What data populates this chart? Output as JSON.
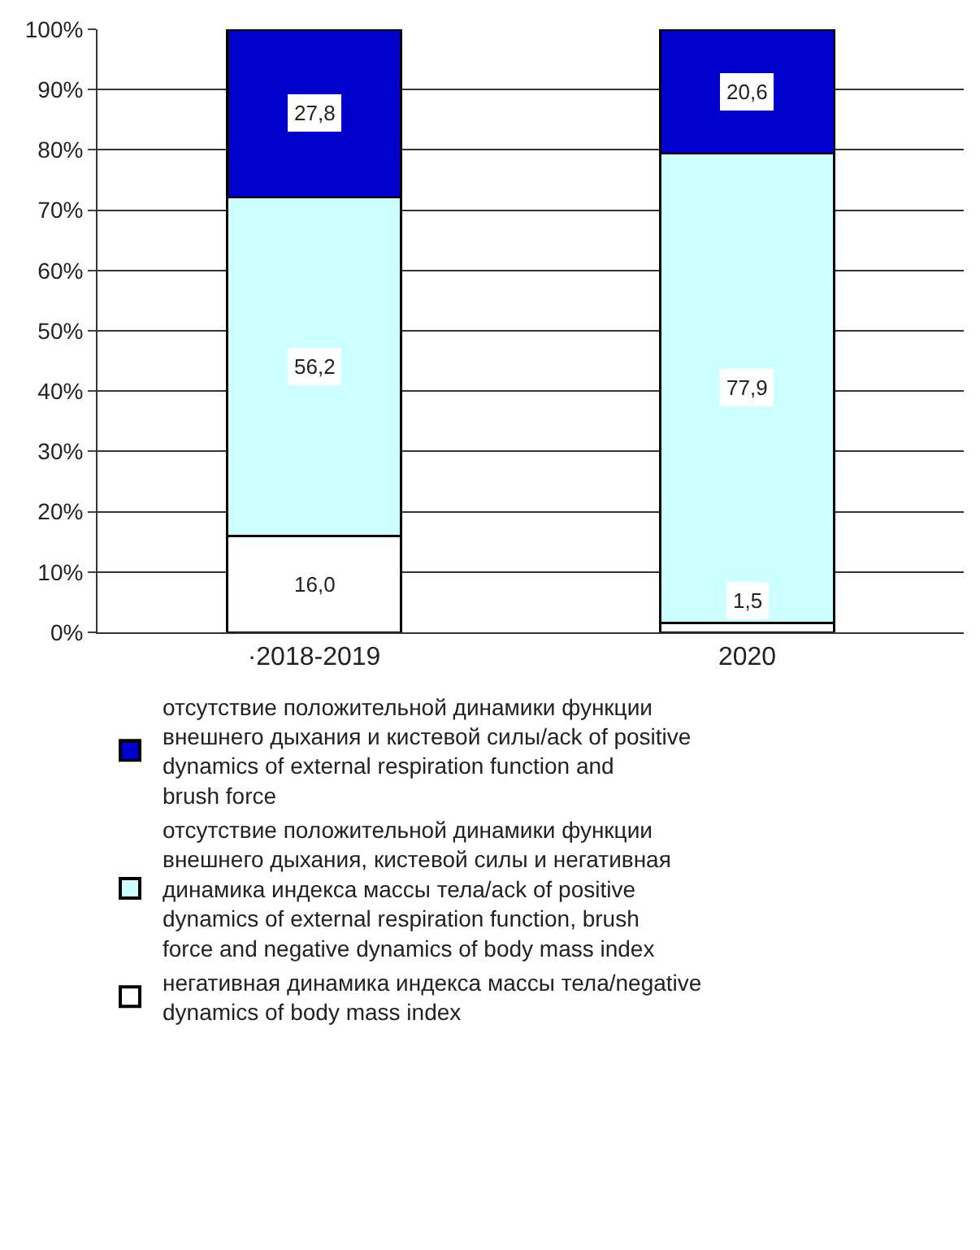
{
  "chart_data": {
    "type": "bar",
    "stacked": true,
    "categories": [
      "·2018-2019",
      "2020"
    ],
    "series": [
      {
        "name": "негативная динамика индекса массы тела/negative dynamics of body mass index",
        "color": "#ffffff",
        "values": [
          16.0,
          1.5
        ],
        "value_labels": [
          "16,0",
          "1,5"
        ]
      },
      {
        "name": "отсутствие положительной динамики функции внешнего дыхания, кистевой силы и негативная динамика индекса массы тела/ack of positive dynamics of external respiration function, brush force and negative dynamics of body mass index",
        "color": "#ccffff",
        "values": [
          56.2,
          77.9
        ],
        "value_labels": [
          "56,2",
          "77,9"
        ]
      },
      {
        "name": "отсутствие положительной динамики функции внешнего дыхания и кистевой силы/ack of positive dynamics of external respiration function and brush force",
        "color": "#0000cc",
        "values": [
          27.8,
          20.6
        ],
        "value_labels": [
          "27,8",
          "20,6"
        ]
      }
    ],
    "ylim": [
      0,
      100
    ],
    "yticks": [
      {
        "value": 0,
        "label": "0%"
      },
      {
        "value": 10,
        "label": "10%"
      },
      {
        "value": 20,
        "label": "20%"
      },
      {
        "value": 30,
        "label": "30%"
      },
      {
        "value": 40,
        "label": "40%"
      },
      {
        "value": 50,
        "label": "50%"
      },
      {
        "value": 60,
        "label": "60%"
      },
      {
        "value": 70,
        "label": "70%"
      },
      {
        "value": 80,
        "label": "80%"
      },
      {
        "value": 90,
        "label": "90%"
      },
      {
        "value": 100,
        "label": "100%"
      }
    ],
    "grid": "y",
    "legend": "bottom"
  }
}
